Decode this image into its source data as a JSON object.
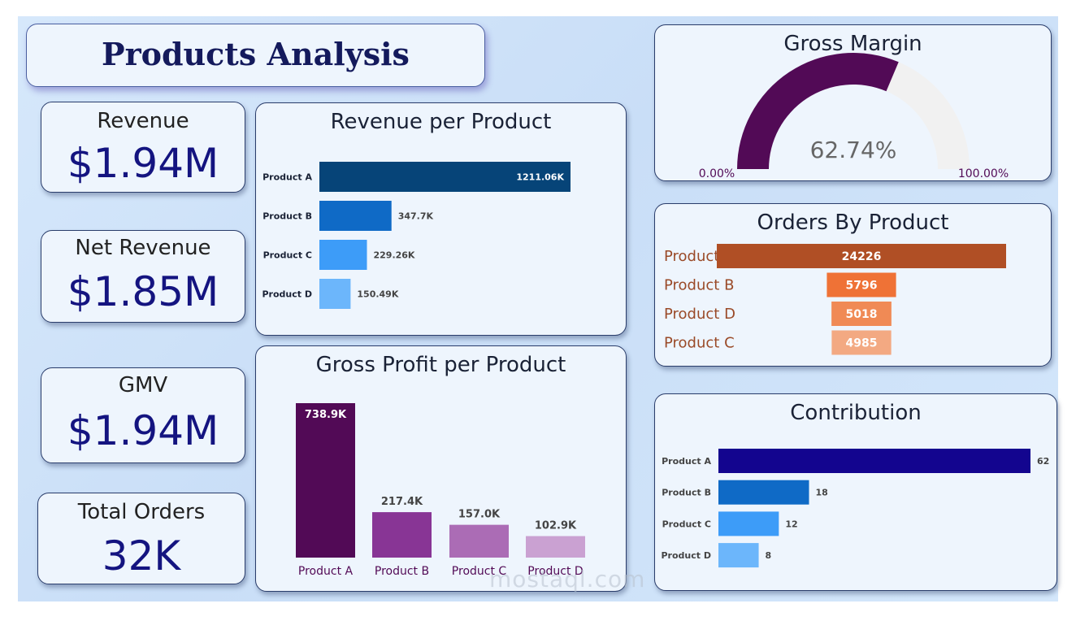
{
  "page": {
    "title": "Products Analysis"
  },
  "kpis": {
    "revenue": {
      "label": "Revenue",
      "value": "$1.94M"
    },
    "net_revenue": {
      "label": "Net Revenue",
      "value": "$1.85M"
    },
    "gmv": {
      "label": "GMV",
      "value": "$1.94M"
    },
    "total_orders": {
      "label": "Total Orders",
      "value": "32K"
    }
  },
  "watermark": "mostaql.com",
  "colors": {
    "revenue_bars": [
      "#064478",
      "#0f6ac6",
      "#3d9cf8",
      "#6cb6fb"
    ],
    "profit_bars": [
      "#520a56",
      "#883595",
      "#ab6cb5",
      "#caa1d2"
    ],
    "orders_bars": [
      "#b04f25",
      "#ef7236",
      "#f08a55",
      "#f3a982"
    ],
    "contribution_bars": [
      "#13058f",
      "#0f6ac6",
      "#3d9cf8",
      "#6cb6fb"
    ],
    "gauge_fill": "#520a56",
    "gauge_track": "#f1f1f1"
  },
  "chart_data": [
    {
      "id": "revenue",
      "type": "bar",
      "orientation": "horizontal",
      "title": "Revenue per Product",
      "categories": [
        "Product A",
        "Product B",
        "Product C",
        "Product D"
      ],
      "values": [
        1211.06,
        347.7,
        229.26,
        150.49
      ],
      "data_labels": [
        "1211.06K",
        "347.7K",
        "229.26K",
        "150.49K"
      ],
      "xlim": [
        0,
        1211.06
      ]
    },
    {
      "id": "gross_profit",
      "type": "bar",
      "orientation": "vertical",
      "title": "Gross Profit per Product",
      "categories": [
        "Product A",
        "Product B",
        "Product C",
        "Product D"
      ],
      "values": [
        738.9,
        217.4,
        157.0,
        102.9
      ],
      "data_labels": [
        "738.9K",
        "217.4K",
        "157.0K",
        "102.9K"
      ],
      "ylim": [
        0,
        738.9
      ]
    },
    {
      "id": "gross_margin",
      "type": "gauge",
      "title": "Gross Margin",
      "value": 62.74,
      "value_label": "62.74%",
      "min_label": "0.00%",
      "max_label": "100.00%",
      "range": [
        0,
        100
      ]
    },
    {
      "id": "orders",
      "type": "bar",
      "orientation": "funnel",
      "title": "Orders By Product",
      "categories": [
        "Product A",
        "Product B",
        "Product D",
        "Product C"
      ],
      "values": [
        24226,
        5796,
        5018,
        4985
      ],
      "data_labels": [
        "24226",
        "5796",
        "5018",
        "4985"
      ]
    },
    {
      "id": "contribution",
      "type": "bar",
      "orientation": "horizontal",
      "title": "Contribution",
      "categories": [
        "Product A",
        "Product B",
        "Product C",
        "Product D"
      ],
      "values": [
        62,
        18,
        12,
        8
      ],
      "data_labels": [
        "62",
        "18",
        "12",
        "8"
      ],
      "xlim": [
        0,
        62
      ]
    }
  ]
}
